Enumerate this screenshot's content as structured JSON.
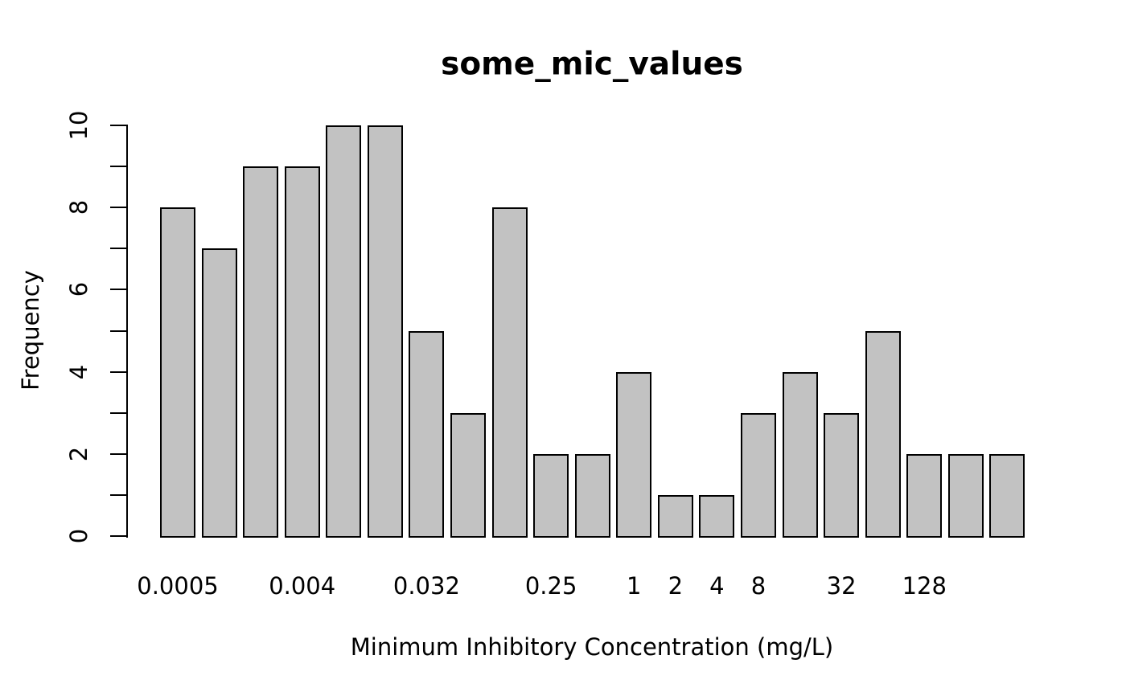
{
  "chart_data": {
    "type": "bar",
    "subtype": "histogram",
    "title": "some_mic_values",
    "xlabel": "Minimum Inhibitory Concentration (mg/L)",
    "ylabel": "Frequency",
    "ylim": [
      0,
      10
    ],
    "ytick_interval": 1,
    "ytick_labeled_values": [
      0,
      2,
      4,
      6,
      8,
      10
    ],
    "ytick_labels": [
      "0",
      "2",
      "4",
      "6",
      "8",
      "10"
    ],
    "bar_count": 21,
    "values": [
      8,
      7,
      9,
      9,
      10,
      10,
      5,
      3,
      8,
      2,
      2,
      4,
      1,
      1,
      3,
      4,
      3,
      5,
      2,
      2,
      2
    ],
    "xtick_labels": [
      {
        "label": "0.0005",
        "bar_index": 0
      },
      {
        "label": "0.004",
        "bar_index": 3
      },
      {
        "label": "0.032",
        "bar_index": 6
      },
      {
        "label": "0.25",
        "bar_index": 9
      },
      {
        "label": "1",
        "bar_index": 11
      },
      {
        "label": "2",
        "bar_index": 12
      },
      {
        "label": "4",
        "bar_index": 13
      },
      {
        "label": "8",
        "bar_index": 14
      },
      {
        "label": "32",
        "bar_index": 16
      },
      {
        "label": "128",
        "bar_index": 18
      }
    ],
    "grid": false,
    "legend": "none",
    "colors": {
      "bar_fill": "#c2c2c2",
      "bar_border": "#000000",
      "axis": "#000000",
      "text": "#000000",
      "background": "#ffffff"
    }
  }
}
